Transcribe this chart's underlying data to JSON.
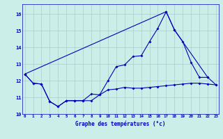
{
  "title": "Graphe des températures (°c)",
  "background_color": "#cceee8",
  "grid_color": "#aacccc",
  "line_color": "#0000bb",
  "x_hours": [
    0,
    1,
    2,
    3,
    4,
    5,
    6,
    7,
    8,
    9,
    10,
    11,
    12,
    13,
    14,
    15,
    16,
    17,
    18,
    19,
    20,
    21,
    22,
    23
  ],
  "series1_x": [
    0,
    1,
    2,
    3,
    4,
    5,
    6,
    7,
    8,
    9,
    10,
    11,
    12,
    13,
    14,
    15,
    16,
    17,
    18,
    19,
    20,
    21,
    22,
    23
  ],
  "series1_y": [
    12.4,
    11.85,
    11.8,
    10.75,
    10.45,
    10.8,
    10.8,
    10.8,
    10.8,
    11.15,
    11.45,
    11.5,
    11.6,
    11.55,
    11.55,
    11.6,
    11.65,
    11.7,
    11.75,
    11.8,
    11.85,
    11.85,
    11.8,
    11.75
  ],
  "series2_x": [
    0,
    1,
    2,
    3,
    4,
    5,
    6,
    7,
    8,
    9,
    10,
    11,
    12,
    13,
    14,
    15,
    16,
    17,
    18,
    19,
    20,
    21,
    22,
    23
  ],
  "series2_y": [
    12.4,
    11.85,
    11.8,
    10.75,
    10.45,
    10.8,
    10.8,
    10.8,
    11.2,
    11.15,
    12.0,
    12.85,
    12.95,
    13.45,
    13.5,
    14.35,
    15.15,
    16.15,
    15.05,
    14.35,
    13.1,
    12.2,
    12.2,
    11.75
  ],
  "series3_x": [
    0,
    17,
    18,
    22
  ],
  "series3_y": [
    12.4,
    16.15,
    15.05,
    12.2
  ],
  "ylim": [
    10,
    16.6
  ],
  "yticks": [
    10,
    11,
    12,
    13,
    14,
    15,
    16
  ],
  "xlim": [
    0,
    23
  ]
}
